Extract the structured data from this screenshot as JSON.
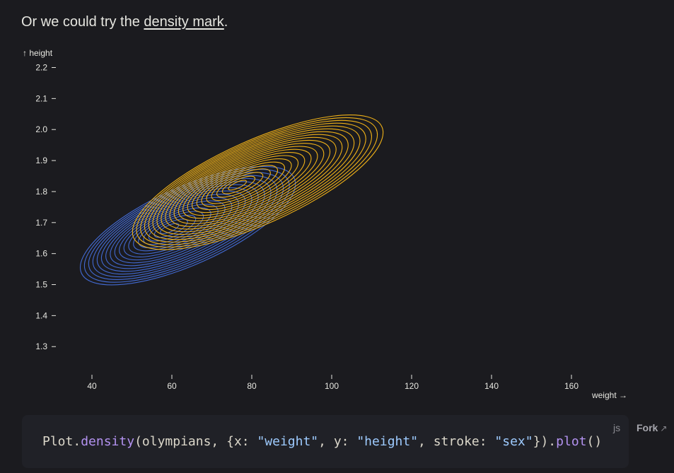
{
  "intro": {
    "before": "Or we could try the ",
    "link": "density mark",
    "after": "."
  },
  "chart_data": {
    "type": "density",
    "xlabel": "weight →",
    "ylabel": "↑ height",
    "xlim": [
      31,
      172
    ],
    "ylim": [
      1.23,
      2.24
    ],
    "x_ticks": [
      40,
      60,
      80,
      100,
      120,
      140,
      160
    ],
    "y_ticks": [
      1.3,
      1.4,
      1.5,
      1.6,
      1.7,
      1.8,
      1.9,
      2.0,
      2.1,
      2.2
    ],
    "x_tick_labels": [
      "40",
      "60",
      "80",
      "100",
      "120",
      "140",
      "160"
    ],
    "y_tick_labels": [
      "1.3",
      "1.4",
      "1.5",
      "1.6",
      "1.7",
      "1.8",
      "1.9",
      "2.0",
      "2.1",
      "2.2"
    ],
    "series": [
      {
        "color": "#4269d0",
        "center": [
          59,
          1.68
        ],
        "outer_extent_x": [
          37,
          91
        ],
        "outer_extent_y": [
          1.44,
          1.94
        ],
        "contour_levels": 18
      },
      {
        "color": "#efb118",
        "center": [
          76,
          1.82
        ],
        "outer_extent_x": [
          50,
          113
        ],
        "outer_extent_y": [
          1.56,
          2.1
        ],
        "contour_levels": 22
      }
    ]
  },
  "code": {
    "obj": "Plot",
    "dot1": ".",
    "method1": "density",
    "args_open": "(olympians, {x: ",
    "str_weight": "\"weight\"",
    "sep1": ", y: ",
    "str_height": "\"height\"",
    "sep2": ", stroke: ",
    "str_sex": "\"sex\"",
    "args_close": "})",
    "dot2": ".",
    "method2": "plot",
    "end": "()"
  },
  "code_lang": "js",
  "fork_label": "Fork",
  "fork_arrow": "↗"
}
